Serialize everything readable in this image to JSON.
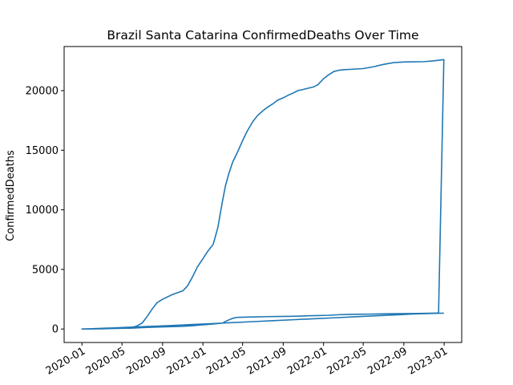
{
  "chart_data": {
    "type": "line",
    "title": "Brazil Santa Catarina ConfirmedDeaths Over Time",
    "xlabel": "",
    "ylabel": "ConfirmedDeaths",
    "xlim": [
      "2019-11-08",
      "2023-02-23"
    ],
    "ylim": [
      -1130,
      23700
    ],
    "x_ticks": [
      "2020-01",
      "2020-05",
      "2020-09",
      "2021-01",
      "2021-05",
      "2021-09",
      "2022-01",
      "2022-05",
      "2022-09",
      "2023-01"
    ],
    "y_ticks": [
      0,
      5000,
      10000,
      15000,
      20000
    ],
    "grid": false,
    "legend": "none",
    "color": "#1f77b4",
    "series": [
      {
        "x": [
          "2020-01-01",
          "2020-02-01",
          "2020-03-01",
          "2020-04-01",
          "2020-05-01",
          "2020-06-01",
          "2020-06-15",
          "2020-07-01",
          "2020-07-15",
          "2020-08-01",
          "2020-08-15",
          "2020-09-01",
          "2020-10-01",
          "2020-11-01",
          "2020-11-15",
          "2020-12-01",
          "2020-12-15",
          "2021-01-01",
          "2021-01-15",
          "2021-02-01",
          "2021-02-15",
          "2021-03-01",
          "2021-03-10",
          "2021-03-20",
          "2021-04-01",
          "2021-04-15",
          "2021-05-01",
          "2021-05-15",
          "2021-06-01",
          "2021-06-15",
          "2021-07-01",
          "2021-07-15",
          "2021-08-01",
          "2021-08-15",
          "2021-09-01",
          "2021-09-15",
          "2021-10-01",
          "2021-10-15",
          "2021-11-01",
          "2021-11-15",
          "2021-12-01",
          "2021-12-15",
          "2022-01-01",
          "2022-01-15",
          "2022-02-01",
          "2022-02-15",
          "2022-03-01",
          "2022-04-01",
          "2022-05-01",
          "2022-06-01",
          "2022-07-01",
          "2022-08-01",
          "2022-09-01",
          "2022-10-01",
          "2022-11-01",
          "2022-12-01",
          "2022-12-31",
          "2022-12-15",
          "2022-11-15",
          "2022-10-15",
          "2022-09-15",
          "2022-08-15",
          "2022-07-15",
          "2022-06-15",
          "2022-05-15",
          "2022-04-15",
          "2022-03-15",
          "2022-02-15",
          "2022-01-15",
          "2021-12-15",
          "2021-11-15",
          "2021-10-15",
          "2021-09-15",
          "2021-08-15",
          "2021-07-15",
          "2021-06-15",
          "2021-05-15",
          "2021-04-15",
          "2021-04-01",
          "2021-03-15",
          "2021-03-01",
          "2021-02-01",
          "2021-01-01",
          "2020-12-01",
          "2020-11-01",
          "2020-10-01",
          "2020-09-01",
          "2020-08-01",
          "2020-07-01",
          "2020-06-01",
          "2020-05-01",
          "2020-04-01",
          "2020-03-01",
          "2020-02-01",
          "2020-01-01",
          "2020-02-01",
          "2020-04-01",
          "2020-06-01",
          "2020-08-01",
          "2020-10-01",
          "2020-12-01",
          "2021-02-01",
          "2021-04-01",
          "2021-06-01",
          "2021-08-01",
          "2021-10-01",
          "2021-12-01",
          "2022-02-01",
          "2022-04-01",
          "2022-06-01",
          "2022-08-01",
          "2022-10-01",
          "2022-12-01",
          "2022-12-31"
        ],
        "y": [
          0,
          10,
          20,
          40,
          80,
          150,
          250,
          500,
          1000,
          1700,
          2200,
          2500,
          2900,
          3200,
          3600,
          4400,
          5200,
          5900,
          6500,
          7100,
          8500,
          10700,
          12000,
          13000,
          14000,
          14800,
          15800,
          16600,
          17400,
          17900,
          18300,
          18600,
          18900,
          19200,
          19400,
          19600,
          19800,
          20000,
          20100,
          20200,
          20300,
          20500,
          21000,
          21300,
          21600,
          21700,
          21750,
          21800,
          21850,
          22000,
          22200,
          22350,
          22400,
          22420,
          22430,
          22500,
          22600,
          1340,
          1320,
          1310,
          1300,
          1290,
          1280,
          1260,
          1250,
          1240,
          1220,
          1200,
          1150,
          1130,
          1110,
          1080,
          1060,
          1050,
          1040,
          1020,
          1000,
          980,
          900,
          700,
          500,
          420,
          350,
          280,
          230,
          200,
          180,
          150,
          120,
          80,
          60,
          40,
          20,
          10,
          0,
          30,
          90,
          160,
          230,
          300,
          380,
          460,
          540,
          620,
          700,
          780,
          860,
          940,
          1020,
          1100,
          1180,
          1260,
          1310,
          1330
        ]
      }
    ]
  }
}
